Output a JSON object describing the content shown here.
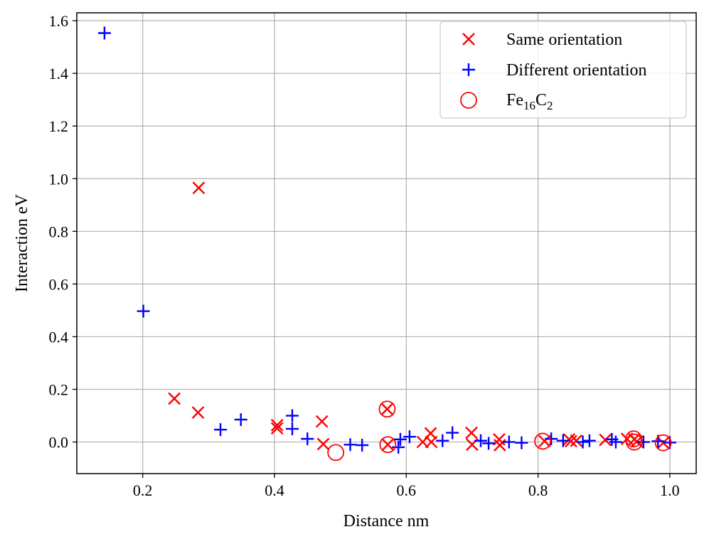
{
  "chart_data": {
    "type": "scatter",
    "title": "",
    "xlabel": "Distance nm",
    "ylabel": "Interaction eV",
    "xlim": [
      0.1,
      1.04
    ],
    "ylim": [
      -0.12,
      1.63
    ],
    "xticks": [
      0.2,
      0.4,
      0.6,
      0.8,
      1.0
    ],
    "xtick_labels": [
      "0.2",
      "0.4",
      "0.6",
      "0.8",
      "1.0"
    ],
    "yticks": [
      0.0,
      0.2,
      0.4,
      0.6,
      0.8,
      1.0,
      1.2,
      1.4,
      1.6
    ],
    "ytick_labels": [
      "0.0",
      "0.2",
      "0.4",
      "0.6",
      "0.8",
      "1.0",
      "1.2",
      "1.4",
      "1.6"
    ],
    "grid": true,
    "legend": {
      "position": "top-right",
      "entries": [
        {
          "label": "Same orientation",
          "marker": "x",
          "color": "#ff0000"
        },
        {
          "label": "Different orientation",
          "marker": "+",
          "color": "#0000ff"
        },
        {
          "label_main": "Fe",
          "label_sub1": "16",
          "label_mid": "C",
          "label_sub2": "2",
          "marker": "o",
          "color": "#ff0000"
        }
      ]
    },
    "series": [
      {
        "name": "Same orientation",
        "marker": "x",
        "color": "#ff0000",
        "points": [
          [
            0.285,
            0.965
          ],
          [
            0.248,
            0.165
          ],
          [
            0.284,
            0.112
          ],
          [
            0.404,
            0.064
          ],
          [
            0.404,
            0.052
          ],
          [
            0.472,
            0.078
          ],
          [
            0.474,
            -0.008
          ],
          [
            0.571,
            0.125
          ],
          [
            0.572,
            -0.01
          ],
          [
            0.625,
            0.0
          ],
          [
            0.637,
            0.033
          ],
          [
            0.638,
            0.0
          ],
          [
            0.699,
            0.035
          ],
          [
            0.7,
            -0.01
          ],
          [
            0.741,
            0.01
          ],
          [
            0.742,
            -0.012
          ],
          [
            0.81,
            0.003
          ],
          [
            0.847,
            0.01
          ],
          [
            0.85,
            0.003
          ],
          [
            0.858,
            0.005
          ],
          [
            0.902,
            0.008
          ],
          [
            0.935,
            0.012
          ],
          [
            0.946,
            0.01
          ],
          [
            0.95,
            0.002
          ],
          [
            0.99,
            -0.003
          ]
        ]
      },
      {
        "name": "Different orientation",
        "marker": "+",
        "color": "#0000ff",
        "points": [
          [
            0.142,
            1.553
          ],
          [
            0.201,
            0.497
          ],
          [
            0.318,
            0.047
          ],
          [
            0.349,
            0.085
          ],
          [
            0.427,
            0.1
          ],
          [
            0.427,
            0.05
          ],
          [
            0.45,
            0.012
          ],
          [
            0.515,
            -0.01
          ],
          [
            0.533,
            -0.012
          ],
          [
            0.588,
            -0.02
          ],
          [
            0.591,
            0.01
          ],
          [
            0.605,
            0.02
          ],
          [
            0.655,
            0.005
          ],
          [
            0.67,
            0.035
          ],
          [
            0.713,
            0.005
          ],
          [
            0.725,
            -0.005
          ],
          [
            0.756,
            0.0
          ],
          [
            0.775,
            -0.003
          ],
          [
            0.82,
            0.012
          ],
          [
            0.838,
            0.005
          ],
          [
            0.868,
            0.0
          ],
          [
            0.878,
            0.005
          ],
          [
            0.912,
            0.01
          ],
          [
            0.918,
            0.0
          ],
          [
            0.96,
            0.0
          ],
          [
            0.982,
            0.003
          ],
          [
            1.0,
            -0.002
          ]
        ]
      },
      {
        "name": "Fe16C2",
        "marker": "o",
        "color": "#ff0000",
        "points": [
          [
            0.493,
            -0.04
          ],
          [
            0.571,
            0.125
          ],
          [
            0.572,
            -0.01
          ],
          [
            0.807,
            0.003
          ],
          [
            0.945,
            0.012
          ],
          [
            0.946,
            0.0
          ],
          [
            0.99,
            -0.003
          ]
        ]
      }
    ]
  }
}
